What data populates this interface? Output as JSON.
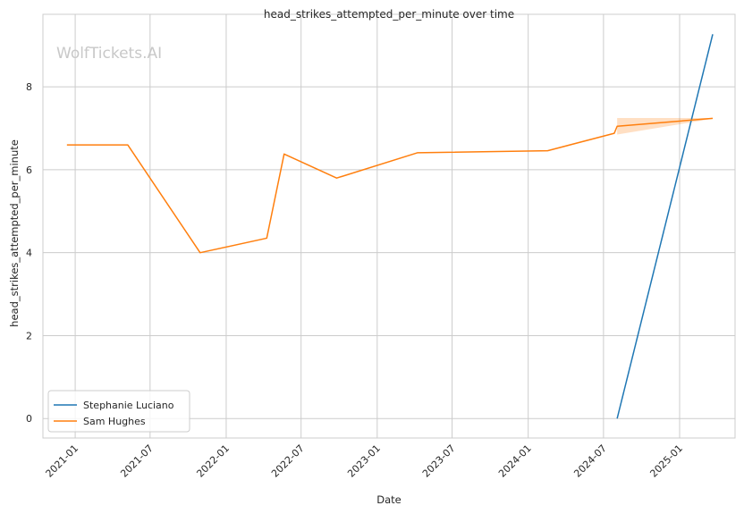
{
  "watermark": "WolfTickets.AI",
  "chart_data": {
    "type": "line",
    "title": "head_strikes_attempted_per_minute over time",
    "xlabel": "Date",
    "ylabel": "head_strikes_attempted_per_minute",
    "x_ticks": [
      "2021-01",
      "2021-07",
      "2022-01",
      "2022-07",
      "2023-01",
      "2023-07",
      "2024-01",
      "2024-07",
      "2025-01"
    ],
    "y_ticks": [
      0,
      2,
      4,
      6,
      8
    ],
    "xlim": [
      "2020-10-15",
      "2025-05-15"
    ],
    "ylim": [
      -0.47,
      9.75
    ],
    "grid": true,
    "legend_position": "lower-left",
    "series": [
      {
        "name": "Stephanie Luciano",
        "color": "#1f77b4",
        "points": [
          {
            "x": "2024-08-03",
            "y": 0.0
          },
          {
            "x": "2025-03-22",
            "y": 9.27
          }
        ]
      },
      {
        "name": "Sam Hughes",
        "color": "#ff7f0e",
        "points": [
          {
            "x": "2020-12-12",
            "y": 6.6
          },
          {
            "x": "2021-05-08",
            "y": 6.6
          },
          {
            "x": "2021-10-30",
            "y": 4.0
          },
          {
            "x": "2022-04-09",
            "y": 4.35
          },
          {
            "x": "2022-05-21",
            "y": 6.38
          },
          {
            "x": "2022-09-25",
            "y": 5.8
          },
          {
            "x": "2023-04-08",
            "y": 6.41
          },
          {
            "x": "2024-02-17",
            "y": 6.46
          },
          {
            "x": "2024-07-27",
            "y": 6.88
          },
          {
            "x": "2024-08-03",
            "y": 7.05
          },
          {
            "x": "2025-03-22",
            "y": 7.24
          }
        ],
        "band": [
          {
            "x": "2024-08-03",
            "low": 6.85,
            "high": 7.25
          },
          {
            "x": "2025-03-22",
            "low": 7.23,
            "high": 7.25
          }
        ]
      }
    ]
  }
}
